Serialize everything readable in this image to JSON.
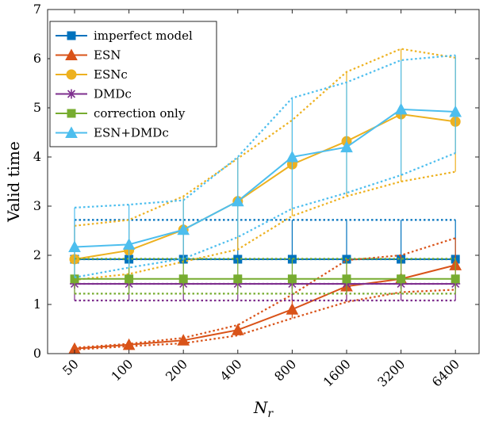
{
  "chart_data": {
    "type": "line",
    "title": "",
    "xlabel": "N_r",
    "xlabel_main": "N",
    "xlabel_sub": "r",
    "ylabel": "Valid time",
    "categories": [
      "50",
      "100",
      "200",
      "400",
      "800",
      "1600",
      "3200",
      "6400"
    ],
    "ylim": [
      0,
      7
    ],
    "yticks": [
      "0",
      "1",
      "2",
      "3",
      "4",
      "5",
      "6",
      "7"
    ],
    "grid": false,
    "legend_position": "top-left",
    "series": [
      {
        "name": "imperfect model",
        "color": "#0072BD",
        "marker": "square",
        "values": [
          1.92,
          1.92,
          1.92,
          1.92,
          1.92,
          1.92,
          1.92,
          1.92
        ],
        "upper": [
          2.72,
          2.72,
          2.72,
          2.72,
          2.72,
          2.72,
          2.72,
          2.72
        ],
        "lower": [
          1.92,
          1.92,
          1.92,
          1.92,
          1.92,
          1.92,
          1.92,
          1.92
        ]
      },
      {
        "name": "ESN",
        "color": "#D95319",
        "marker": "triangle",
        "values": [
          0.1,
          0.18,
          0.27,
          0.48,
          0.9,
          1.37,
          1.52,
          1.8
        ],
        "upper": [
          0.12,
          0.2,
          0.32,
          0.58,
          1.2,
          1.9,
          2.0,
          2.35
        ],
        "lower": [
          0.08,
          0.15,
          0.21,
          0.37,
          0.72,
          1.05,
          1.25,
          1.3
        ]
      },
      {
        "name": "ESNc",
        "color": "#EDB120",
        "marker": "circle",
        "values": [
          1.92,
          2.1,
          2.52,
          3.1,
          3.85,
          4.32,
          4.87,
          4.72
        ],
        "upper": [
          2.6,
          2.72,
          3.2,
          3.97,
          4.75,
          5.73,
          6.2,
          6.02
        ],
        "lower": [
          1.5,
          1.62,
          1.87,
          2.12,
          2.8,
          3.2,
          3.5,
          3.7
        ]
      },
      {
        "name": "DMDc",
        "color": "#7E2F8E",
        "marker": "star",
        "values": [
          1.42,
          1.42,
          1.42,
          1.42,
          1.42,
          1.42,
          1.42,
          1.42
        ],
        "upper": [
          1.42,
          1.42,
          1.42,
          1.42,
          1.42,
          1.42,
          1.42,
          1.42
        ],
        "lower": [
          1.08,
          1.08,
          1.08,
          1.08,
          1.08,
          1.08,
          1.08,
          1.08
        ]
      },
      {
        "name": "correction only",
        "color": "#77AC30",
        "marker": "square",
        "values": [
          1.52,
          1.52,
          1.52,
          1.52,
          1.52,
          1.52,
          1.52,
          1.52
        ],
        "upper": [
          1.93,
          1.93,
          1.93,
          1.93,
          1.93,
          1.93,
          1.93,
          1.93
        ],
        "lower": [
          1.22,
          1.22,
          1.22,
          1.22,
          1.22,
          1.22,
          1.22,
          1.22
        ]
      },
      {
        "name": "ESN+DMDc",
        "color": "#4DBEEE",
        "marker": "triangle",
        "values": [
          2.17,
          2.22,
          2.52,
          3.1,
          4.0,
          4.2,
          4.97,
          4.92
        ],
        "upper": [
          2.97,
          3.03,
          3.12,
          4.0,
          5.2,
          5.52,
          5.97,
          6.07
        ],
        "lower": [
          1.55,
          1.75,
          1.93,
          2.37,
          2.95,
          3.27,
          3.63,
          4.08
        ]
      }
    ]
  }
}
